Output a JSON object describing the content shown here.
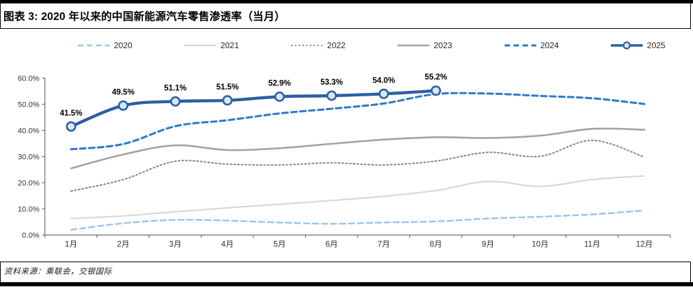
{
  "header": {
    "title": "图表 3: 2020 年以来的中国新能源汽车零售渗透率（当月）"
  },
  "footer": {
    "source": "资料来源：乘联会，交银国际"
  },
  "chart_data": {
    "type": "line",
    "title": "2020 年以来的中国新能源汽车零售渗透率（当月）",
    "xlabel": "",
    "ylabel": "",
    "x_categories": [
      "1月",
      "2月",
      "3月",
      "4月",
      "5月",
      "6月",
      "7月",
      "8月",
      "9月",
      "10月",
      "11月",
      "12月"
    ],
    "ylim": [
      0,
      60
    ],
    "y_tick_values": [
      0,
      10,
      20,
      30,
      40,
      50,
      60
    ],
    "y_tick_labels": [
      "0.0%",
      "10.0%",
      "20.0%",
      "30.0%",
      "40.0%",
      "50.0%",
      "60.0%"
    ],
    "grid": false,
    "legend_position": "top",
    "line_smoothing": true,
    "series": [
      {
        "name": "2020",
        "color": "#9DC3E6",
        "style": "dashed",
        "stroke_width": 2.4,
        "values": [
          2.0,
          4.5,
          5.8,
          5.5,
          4.8,
          4.3,
          4.8,
          5.2,
          6.3,
          7.0,
          7.9,
          9.4
        ]
      },
      {
        "name": "2021",
        "color": "#D8D4D4",
        "style": "solid",
        "stroke_width": 2,
        "values": [
          6.3,
          7.3,
          8.9,
          10.4,
          11.8,
          13.2,
          14.8,
          17.0,
          20.5,
          18.6,
          21.2,
          22.6
        ]
      },
      {
        "name": "2022",
        "color": "#8A8480",
        "style": "dotted",
        "stroke_width": 2,
        "values": [
          16.8,
          21.2,
          28.2,
          27.1,
          26.8,
          27.6,
          26.8,
          28.3,
          31.6,
          30.1,
          36.2,
          29.8
        ]
      },
      {
        "name": "2023",
        "color": "#A3A3A3",
        "style": "solid",
        "stroke_width": 2.6,
        "values": [
          25.5,
          30.8,
          34.3,
          32.5,
          33.2,
          34.9,
          36.5,
          37.4,
          37.1,
          38.0,
          40.6,
          40.3
        ]
      },
      {
        "name": "2024",
        "color": "#2B7AC5",
        "style": "dashed",
        "stroke_width": 3,
        "values": [
          32.8,
          34.8,
          41.6,
          43.9,
          46.5,
          48.3,
          50.3,
          53.9,
          54.1,
          53.2,
          52.3,
          50.1
        ]
      },
      {
        "name": "2025",
        "color": "#2B5FA6",
        "style": "solid-marker",
        "stroke_width": 4.4,
        "marker": {
          "fill": "#D9E7F5",
          "stroke": "#2B5FA6"
        },
        "values": [
          41.5,
          49.5,
          51.1,
          51.5,
          52.9,
          53.3,
          54.0,
          55.2
        ],
        "data_labels": [
          "41.5%",
          "49.5%",
          "51.1%",
          "51.5%",
          "52.9%",
          "53.3%",
          "54.0%",
          "55.2%"
        ]
      }
    ],
    "axis_color": "#6e6e6e",
    "tick_label_color": "#303030"
  }
}
